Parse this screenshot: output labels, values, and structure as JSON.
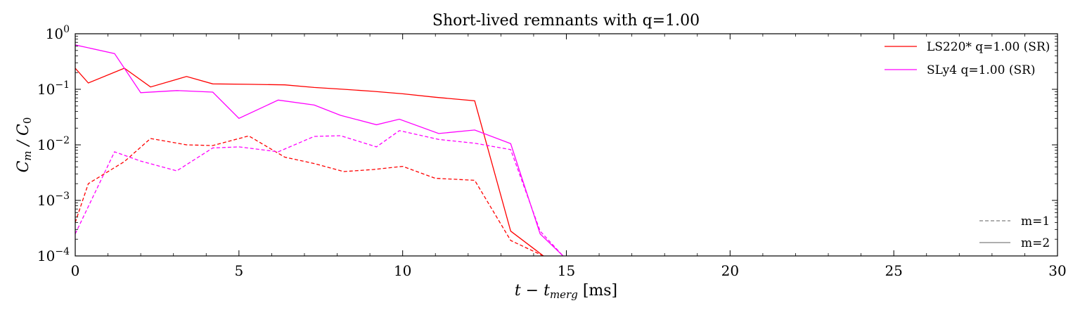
{
  "chart_data": {
    "type": "line",
    "title": "Short-lived remnants with q=1.00",
    "xlabel": "t − t",
    "xlabel_sub": "merg",
    "xlabel_unit": " [ms]",
    "ylabel": "C",
    "ylabel_sub1": "m",
    "ylabel_mid": " / C",
    "ylabel_sub2": "0",
    "xlim": [
      0,
      30
    ],
    "ylim": [
      0.0001,
      1
    ],
    "yscale": "log",
    "xticks": [
      0,
      5,
      10,
      15,
      20,
      25,
      30
    ],
    "xtick_labels": [
      "0",
      "5",
      "10",
      "15",
      "20",
      "25",
      "30"
    ],
    "yticks": [
      {
        "base": "10",
        "exp": "−4",
        "value": 0.0001
      },
      {
        "base": "10",
        "exp": "−3",
        "value": 0.001
      },
      {
        "base": "10",
        "exp": "−2",
        "value": 0.01
      },
      {
        "base": "10",
        "exp": "−1",
        "value": 0.1
      },
      {
        "base": "10",
        "exp": "0",
        "value": 1
      }
    ],
    "grid": false,
    "legend_placement": "top-right",
    "style_legend_placement": "bottom-right",
    "series": [
      {
        "name": "LS220* q=1.00 (SR)",
        "color": "#ff0000",
        "m2": {
          "x": [
            0,
            0.4,
            1.5,
            2.3,
            3.4,
            4.2,
            5.3,
            6.4,
            7.3,
            8.2,
            9.1,
            10.0,
            11.0,
            12.2,
            13.3,
            14.3
          ],
          "y": [
            0.24,
            0.13,
            0.24,
            0.11,
            0.17,
            0.125,
            0.123,
            0.12,
            0.108,
            0.1,
            0.092,
            0.083,
            0.072,
            0.062,
            0.00028,
            0.0001
          ]
        },
        "m1": {
          "x": [
            0,
            0.4,
            1.5,
            2.3,
            3.4,
            4.2,
            5.3,
            6.4,
            7.3,
            8.2,
            9.1,
            10.0,
            11.0,
            12.2,
            13.3,
            14.3
          ],
          "y": [
            0.0004,
            0.002,
            0.005,
            0.013,
            0.01,
            0.0097,
            0.0145,
            0.006,
            0.0046,
            0.0033,
            0.0036,
            0.0041,
            0.0025,
            0.0023,
            0.00019,
            0.0001
          ]
        }
      },
      {
        "name": "SLy4 q=1.00 (SR)",
        "color": "#ff00ff",
        "m2": {
          "x": [
            0,
            1.2,
            2.0,
            3.1,
            4.2,
            5.0,
            6.2,
            7.3,
            8.1,
            9.2,
            9.9,
            11.1,
            12.2,
            13.3,
            14.2,
            14.9
          ],
          "y": [
            0.63,
            0.44,
            0.087,
            0.095,
            0.089,
            0.03,
            0.064,
            0.052,
            0.034,
            0.023,
            0.029,
            0.016,
            0.0185,
            0.0105,
            0.00025,
            0.0001
          ]
        },
        "m1": {
          "x": [
            0,
            1.2,
            2.0,
            3.1,
            4.2,
            5.0,
            6.2,
            7.3,
            8.1,
            9.2,
            9.9,
            11.1,
            12.2,
            13.3,
            14.2,
            14.9
          ],
          "y": [
            0.00025,
            0.0075,
            0.0051,
            0.0034,
            0.0088,
            0.0092,
            0.0075,
            0.0142,
            0.0146,
            0.0092,
            0.018,
            0.0125,
            0.0107,
            0.0082,
            0.00028,
            0.0001
          ]
        }
      }
    ],
    "style_legend": [
      {
        "label": "m=1",
        "dash": "dashed"
      },
      {
        "label": "m=2",
        "dash": "solid"
      }
    ]
  }
}
